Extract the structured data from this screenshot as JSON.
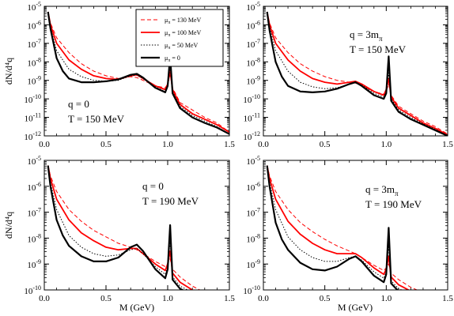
{
  "figure": {
    "shared_xlabel": "M (GeV)",
    "shared_ylabel": "dN/d⁴q"
  },
  "legend": {
    "entries": [
      {
        "label": "μπ = 130 MeV",
        "color": "#ff0000",
        "style": "dashed"
      },
      {
        "label": "μπ = 100 MeV",
        "color": "#ff0000",
        "style": "solid"
      },
      {
        "label": "μπ = 50 MeV",
        "color": "#000000",
        "style": "dotted"
      },
      {
        "label": "μπ = 0",
        "color": "#000000",
        "style": "solid-thick"
      }
    ]
  },
  "chart_data": [
    {
      "type": "line",
      "panel": "top-left",
      "annotations": [
        "q = 0",
        "T = 150 MeV"
      ],
      "xlim": [
        0,
        1.5
      ],
      "xticks": [
        "0.0",
        "0.5",
        "1.0",
        "1.5"
      ],
      "ylog": true,
      "ylim_exp": [
        -12,
        -5
      ],
      "series": [
        {
          "name": "μπ = 130 MeV",
          "x": [
            0.03,
            0.05,
            0.1,
            0.2,
            0.3,
            0.4,
            0.5,
            0.6,
            0.7,
            0.75,
            0.8,
            0.9,
            0.98,
            1.0,
            1.02,
            1.04,
            1.1,
            1.2,
            1.3,
            1.4,
            1.5
          ],
          "y": [
            -5.3,
            -5.9,
            -6.7,
            -7.5,
            -8.1,
            -8.5,
            -8.75,
            -8.9,
            -8.8,
            -8.85,
            -9.0,
            -9.3,
            -9.4,
            -9.2,
            -8.7,
            -9.4,
            -10.2,
            -10.6,
            -11.0,
            -11.3,
            -11.8
          ]
        },
        {
          "name": "μπ = 100 MeV",
          "x": [
            0.03,
            0.05,
            0.1,
            0.2,
            0.3,
            0.4,
            0.5,
            0.6,
            0.7,
            0.75,
            0.8,
            0.9,
            0.98,
            1.0,
            1.02,
            1.04,
            1.1,
            1.2,
            1.3,
            1.4,
            1.5
          ],
          "y": [
            -5.3,
            -6.0,
            -7.0,
            -7.9,
            -8.4,
            -8.75,
            -8.9,
            -8.95,
            -8.75,
            -8.7,
            -8.9,
            -9.3,
            -9.5,
            -9.2,
            -8.5,
            -9.5,
            -10.3,
            -10.8,
            -11.1,
            -11.4,
            -11.8
          ]
        },
        {
          "name": "μπ = 50 MeV",
          "x": [
            0.03,
            0.05,
            0.1,
            0.2,
            0.3,
            0.4,
            0.5,
            0.6,
            0.7,
            0.75,
            0.8,
            0.9,
            0.98,
            1.0,
            1.02,
            1.04,
            1.1,
            1.2,
            1.3,
            1.4,
            1.5
          ],
          "y": [
            -5.3,
            -6.1,
            -7.4,
            -8.4,
            -8.8,
            -9.0,
            -9.05,
            -9.0,
            -8.75,
            -8.7,
            -8.9,
            -9.35,
            -9.6,
            -9.3,
            -8.3,
            -9.6,
            -10.4,
            -10.9,
            -11.2,
            -11.5,
            -11.9
          ]
        },
        {
          "name": "μπ = 0",
          "x": [
            0.03,
            0.05,
            0.1,
            0.15,
            0.2,
            0.3,
            0.4,
            0.5,
            0.6,
            0.7,
            0.75,
            0.8,
            0.9,
            0.98,
            1.0,
            1.02,
            1.04,
            1.1,
            1.2,
            1.3,
            1.4,
            1.5
          ],
          "y": [
            -5.3,
            -6.2,
            -7.8,
            -8.5,
            -8.9,
            -9.1,
            -9.1,
            -9.05,
            -8.95,
            -8.7,
            -8.65,
            -8.85,
            -9.4,
            -9.65,
            -9.3,
            -7.7,
            -9.7,
            -10.5,
            -11.0,
            -11.3,
            -11.55,
            -11.9
          ]
        }
      ]
    },
    {
      "type": "line",
      "panel": "top-right",
      "annotations": [
        "q = 3mπ",
        "T = 150 MeV"
      ],
      "xlim": [
        0,
        1.5
      ],
      "xticks": [
        "0.0",
        "0.5",
        "1.0",
        "1.5"
      ],
      "ylog": true,
      "ylim_exp": [
        -12,
        -5
      ],
      "series": [
        {
          "name": "μπ = 130 MeV",
          "x": [
            0.03,
            0.05,
            0.1,
            0.2,
            0.3,
            0.4,
            0.5,
            0.6,
            0.7,
            0.75,
            0.8,
            0.9,
            0.98,
            1.0,
            1.02,
            1.04,
            1.1,
            1.2,
            1.3,
            1.4,
            1.5
          ],
          "y": [
            -5.3,
            -5.9,
            -6.7,
            -7.5,
            -8.1,
            -8.5,
            -8.8,
            -9.0,
            -9.1,
            -9.15,
            -9.3,
            -9.6,
            -9.75,
            -9.6,
            -9.2,
            -9.8,
            -10.4,
            -10.8,
            -11.2,
            -11.5,
            -11.9
          ]
        },
        {
          "name": "μπ = 100 MeV",
          "x": [
            0.03,
            0.05,
            0.1,
            0.2,
            0.3,
            0.4,
            0.5,
            0.6,
            0.7,
            0.75,
            0.8,
            0.9,
            0.98,
            1.0,
            1.02,
            1.04,
            1.1,
            1.2,
            1.3,
            1.4,
            1.5
          ],
          "y": [
            -5.3,
            -6.0,
            -7.0,
            -7.9,
            -8.5,
            -8.9,
            -9.1,
            -9.2,
            -9.1,
            -9.05,
            -9.2,
            -9.6,
            -9.8,
            -9.5,
            -8.9,
            -9.9,
            -10.5,
            -10.9,
            -11.3,
            -11.6,
            -11.95
          ]
        },
        {
          "name": "μπ = 50 MeV",
          "x": [
            0.03,
            0.05,
            0.1,
            0.2,
            0.3,
            0.4,
            0.5,
            0.6,
            0.7,
            0.75,
            0.8,
            0.9,
            0.98,
            1.0,
            1.02,
            1.04,
            1.1,
            1.2,
            1.3,
            1.4,
            1.5
          ],
          "y": [
            -5.3,
            -6.1,
            -7.4,
            -8.5,
            -9.1,
            -9.35,
            -9.45,
            -9.4,
            -9.2,
            -9.1,
            -9.25,
            -9.7,
            -9.9,
            -9.6,
            -8.6,
            -10.0,
            -10.6,
            -11.0,
            -11.35,
            -11.65,
            -12.0
          ]
        },
        {
          "name": "μπ = 0",
          "x": [
            0.03,
            0.05,
            0.1,
            0.15,
            0.2,
            0.3,
            0.4,
            0.5,
            0.6,
            0.7,
            0.75,
            0.8,
            0.9,
            0.98,
            1.0,
            1.02,
            1.04,
            1.1,
            1.2,
            1.3,
            1.4,
            1.5
          ],
          "y": [
            -5.3,
            -6.3,
            -8.0,
            -8.8,
            -9.3,
            -9.6,
            -9.65,
            -9.6,
            -9.45,
            -9.2,
            -9.1,
            -9.3,
            -9.8,
            -10.0,
            -9.7,
            -7.7,
            -10.1,
            -10.7,
            -11.1,
            -11.4,
            -11.7,
            -12.0
          ]
        }
      ]
    },
    {
      "type": "line",
      "panel": "bottom-left",
      "annotations": [
        "q = 0",
        "T = 190 MeV"
      ],
      "xlim": [
        0,
        1.5
      ],
      "xticks": [
        "0.0",
        "0.5",
        "1.0",
        "1.5"
      ],
      "ylog": true,
      "ylim_exp": [
        -10,
        -5
      ],
      "series": [
        {
          "name": "μπ = 130 MeV",
          "x": [
            0.03,
            0.05,
            0.1,
            0.2,
            0.3,
            0.4,
            0.5,
            0.6,
            0.7,
            0.75,
            0.8,
            0.9,
            0.98,
            1.0,
            1.02,
            1.04,
            1.1,
            1.2,
            1.3
          ],
          "y": [
            -5.2,
            -5.6,
            -6.2,
            -6.9,
            -7.35,
            -7.7,
            -7.95,
            -8.2,
            -8.35,
            -8.45,
            -8.6,
            -8.9,
            -9.1,
            -9.0,
            -8.8,
            -9.2,
            -9.5,
            -9.85,
            -10.1
          ]
        },
        {
          "name": "μπ = 100 MeV",
          "x": [
            0.03,
            0.05,
            0.1,
            0.2,
            0.3,
            0.4,
            0.5,
            0.6,
            0.7,
            0.75,
            0.8,
            0.9,
            0.98,
            1.0,
            1.02,
            1.04,
            1.1,
            1.2,
            1.3
          ],
          "y": [
            -5.2,
            -5.7,
            -6.5,
            -7.3,
            -7.8,
            -8.1,
            -8.35,
            -8.45,
            -8.4,
            -8.4,
            -8.6,
            -9.0,
            -9.25,
            -9.0,
            -8.5,
            -9.35,
            -9.7,
            -10.0,
            -10.2
          ]
        },
        {
          "name": "μπ = 50 MeV",
          "x": [
            0.03,
            0.05,
            0.1,
            0.2,
            0.3,
            0.4,
            0.5,
            0.6,
            0.7,
            0.75,
            0.8,
            0.9,
            0.98,
            1.0,
            1.02,
            1.04,
            1.1,
            1.2,
            1.3
          ],
          "y": [
            -5.2,
            -5.85,
            -6.9,
            -7.9,
            -8.35,
            -8.6,
            -8.7,
            -8.65,
            -8.45,
            -8.4,
            -8.6,
            -9.1,
            -9.4,
            -9.1,
            -8.1,
            -9.5,
            -9.85,
            -10.1,
            -10.25
          ]
        },
        {
          "name": "μπ = 0",
          "x": [
            0.03,
            0.05,
            0.1,
            0.15,
            0.2,
            0.3,
            0.4,
            0.5,
            0.6,
            0.7,
            0.75,
            0.8,
            0.9,
            0.98,
            1.0,
            1.02,
            1.04,
            1.1,
            1.2
          ],
          "y": [
            -5.2,
            -6.0,
            -7.3,
            -7.9,
            -8.3,
            -8.7,
            -8.9,
            -8.9,
            -8.75,
            -8.35,
            -8.25,
            -8.5,
            -9.2,
            -9.55,
            -9.2,
            -7.5,
            -9.6,
            -9.95,
            -10.2
          ]
        }
      ]
    },
    {
      "type": "line",
      "panel": "bottom-right",
      "annotations": [
        "q = 3mπ",
        "T = 190 MeV"
      ],
      "xlim": [
        0,
        1.5
      ],
      "xticks": [
        "0.0",
        "0.5",
        "1.0",
        "1.5"
      ],
      "ylog": true,
      "ylim_exp": [
        -10,
        -5
      ],
      "series": [
        {
          "name": "μπ = 130 MeV",
          "x": [
            0.03,
            0.05,
            0.1,
            0.2,
            0.3,
            0.4,
            0.5,
            0.6,
            0.7,
            0.75,
            0.8,
            0.9,
            0.98,
            1.0,
            1.02,
            1.04,
            1.1,
            1.2,
            1.3
          ],
          "y": [
            -5.2,
            -5.6,
            -6.2,
            -6.9,
            -7.4,
            -7.75,
            -8.05,
            -8.3,
            -8.5,
            -8.6,
            -8.75,
            -9.05,
            -9.25,
            -9.15,
            -9.0,
            -9.35,
            -9.6,
            -9.9,
            -10.1
          ]
        },
        {
          "name": "μπ = 100 MeV",
          "x": [
            0.03,
            0.05,
            0.1,
            0.2,
            0.3,
            0.4,
            0.5,
            0.6,
            0.7,
            0.75,
            0.8,
            0.9,
            0.98,
            1.0,
            1.02,
            1.04,
            1.1,
            1.2,
            1.3
          ],
          "y": [
            -5.2,
            -5.7,
            -6.5,
            -7.35,
            -7.85,
            -8.2,
            -8.45,
            -8.6,
            -8.6,
            -8.6,
            -8.75,
            -9.15,
            -9.4,
            -9.2,
            -8.7,
            -9.5,
            -9.8,
            -10.05,
            -10.2
          ]
        },
        {
          "name": "μπ = 50 MeV",
          "x": [
            0.03,
            0.05,
            0.1,
            0.2,
            0.3,
            0.4,
            0.5,
            0.6,
            0.7,
            0.75,
            0.8,
            0.9,
            0.98,
            1.0,
            1.02,
            1.04,
            1.1,
            1.2,
            1.3
          ],
          "y": [
            -5.2,
            -5.85,
            -6.9,
            -7.95,
            -8.45,
            -8.75,
            -8.9,
            -8.9,
            -8.75,
            -8.7,
            -8.85,
            -9.3,
            -9.55,
            -9.3,
            -8.3,
            -9.65,
            -9.95,
            -10.15,
            -10.25
          ]
        },
        {
          "name": "μpi = 0",
          "x": [
            0.03,
            0.05,
            0.1,
            0.15,
            0.2,
            0.3,
            0.4,
            0.5,
            0.6,
            0.7,
            0.75,
            0.8,
            0.9,
            0.98,
            1.0,
            1.02,
            1.04,
            1.1,
            1.2
          ],
          "y": [
            -5.2,
            -6.0,
            -7.4,
            -8.05,
            -8.45,
            -8.95,
            -9.2,
            -9.25,
            -9.1,
            -8.8,
            -8.7,
            -8.9,
            -9.45,
            -9.7,
            -9.4,
            -7.6,
            -9.75,
            -10.05,
            -10.2
          ]
        }
      ]
    }
  ]
}
